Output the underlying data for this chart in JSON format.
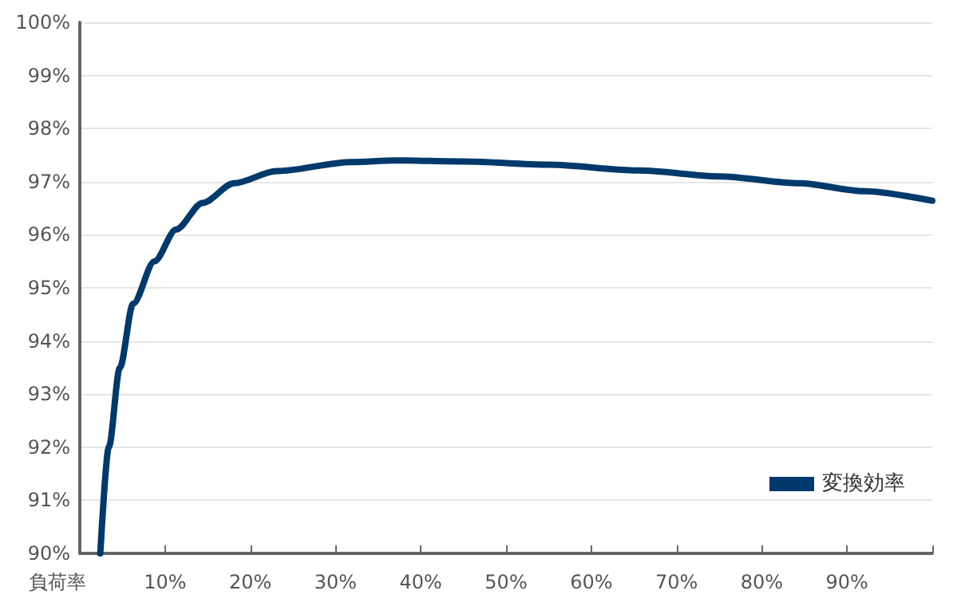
{
  "chart_data": {
    "type": "line",
    "xlabel": "負荷率",
    "x": [
      2.4,
      3.4,
      4.7,
      6.25,
      8.75,
      11.3,
      14.4,
      18.1,
      23.1,
      31.9,
      37,
      45,
      55,
      65.6,
      75,
      84.4,
      92,
      100
    ],
    "series": [
      {
        "name": "変換効率",
        "color": "#003a6c",
        "values": [
          90,
          92,
          93.5,
          94.7,
          95.5,
          96.1,
          96.6,
          96.97,
          97.2,
          97.37,
          97.4,
          97.38,
          97.32,
          97.21,
          97.1,
          96.97,
          96.82,
          96.64
        ]
      }
    ],
    "xlim": [
      0,
      100
    ],
    "xticks": [
      {
        "value": 10,
        "label": "10%"
      },
      {
        "value": 20,
        "label": "20%"
      },
      {
        "value": 30,
        "label": "30%"
      },
      {
        "value": 40,
        "label": "40%"
      },
      {
        "value": 50,
        "label": "50%"
      },
      {
        "value": 60,
        "label": "60%"
      },
      {
        "value": 70,
        "label": "70%"
      },
      {
        "value": 80,
        "label": "80%"
      },
      {
        "value": 90,
        "label": "90%"
      },
      {
        "value": 100,
        "label": null
      }
    ],
    "ylim": [
      90,
      100
    ],
    "yticks": [
      {
        "value": 90,
        "label": "90%"
      },
      {
        "value": 91,
        "label": "91%"
      },
      {
        "value": 92,
        "label": "92%"
      },
      {
        "value": 93,
        "label": "93%"
      },
      {
        "value": 94,
        "label": "94%"
      },
      {
        "value": 95,
        "label": "95%"
      },
      {
        "value": 96,
        "label": "96%"
      },
      {
        "value": 97,
        "label": "97%"
      },
      {
        "value": 98,
        "label": "98%"
      },
      {
        "value": 99,
        "label": "99%"
      },
      {
        "value": 100,
        "label": "100%"
      }
    ],
    "grid": "y",
    "legend": "bottom right",
    "marker": "none",
    "line_style": "solid"
  }
}
